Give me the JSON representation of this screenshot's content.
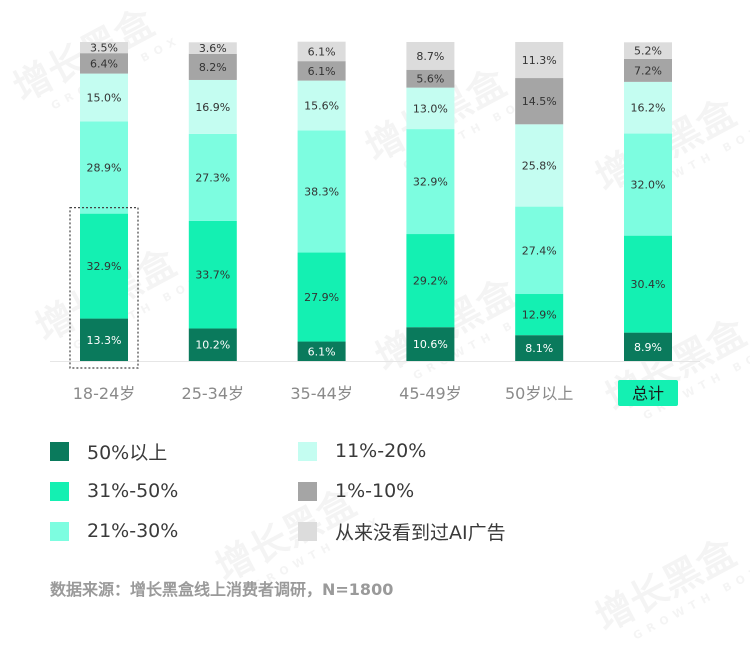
{
  "chart_data": {
    "type": "bar",
    "stacked": true,
    "categories": [
      "18-24岁",
      "25-34岁",
      "35-44岁",
      "45-49岁",
      "50岁以上",
      "总计"
    ],
    "highlighted_category": "总计",
    "ylim": [
      0,
      100
    ],
    "grid": false,
    "legend_position": "bottom",
    "series": [
      {
        "name": "50%以上",
        "color": "#0a7a5c",
        "values": [
          13.3,
          10.2,
          6.1,
          10.6,
          8.1,
          8.9
        ]
      },
      {
        "name": "31%-50%",
        "color": "#14f0b2",
        "values": [
          32.9,
          33.7,
          27.9,
          29.2,
          12.9,
          30.4
        ]
      },
      {
        "name": "21%-30%",
        "color": "#7dfde0",
        "values": [
          28.9,
          27.3,
          38.3,
          32.9,
          27.4,
          32.0
        ]
      },
      {
        "name": "11%-20%",
        "color": "#c4fdf1",
        "values": [
          15.0,
          16.9,
          15.6,
          13.0,
          25.8,
          16.2
        ]
      },
      {
        "name": "1%-10%",
        "color": "#a5a5a5",
        "values": [
          6.4,
          8.2,
          6.1,
          5.6,
          14.5,
          7.2
        ]
      },
      {
        "name": "从来没看到过AI广告",
        "color": "#dcdcdc",
        "values": [
          3.5,
          3.6,
          6.1,
          8.7,
          11.3,
          5.2
        ]
      }
    ],
    "data_labels": [
      [
        "13.3%",
        "10.2%",
        "6.1%",
        "10.6%",
        "8.1%",
        "8.9%"
      ],
      [
        "32.9%",
        "33.7%",
        "27.9%",
        "29.2%",
        "12.9%",
        "30.4%"
      ],
      [
        "28.9%",
        "27.3%",
        "38.3%",
        "32.9%",
        "27.4%",
        "32.0%"
      ],
      [
        "15.0%",
        "16.9%",
        "15.6%",
        "13.0%",
        "25.8%",
        "16.2%"
      ],
      [
        "6.4%",
        "8.2%",
        "6.1%",
        "5.6%",
        "14.5%",
        "7.2%"
      ],
      [
        "3.5%",
        "3.6%",
        "6.1%",
        "8.7%",
        "11.3%",
        "5.2%"
      ]
    ]
  },
  "legend": [
    {
      "label": "50%以上",
      "color": "#0a7a5c"
    },
    {
      "label": "11%-20%",
      "color": "#c4fdf1"
    },
    {
      "label": "31%-50%",
      "color": "#14f0b2"
    },
    {
      "label": "1%-10%",
      "color": "#a5a5a5"
    },
    {
      "label": "21%-30%",
      "color": "#7dfde0"
    },
    {
      "label": "从来没看到过AI广告",
      "color": "#dcdcdc"
    }
  ],
  "source": "数据来源：增长黑盒线上消费者调研，N=1800",
  "watermark": {
    "text": "增长黑盒",
    "subtext": "GROWTH BOX"
  },
  "colors": {
    "highlight_label_bg": "#14f0b2",
    "axis": "#e6e6e6",
    "tick_label": "#8a8a8a",
    "data_label": "#333333"
  }
}
